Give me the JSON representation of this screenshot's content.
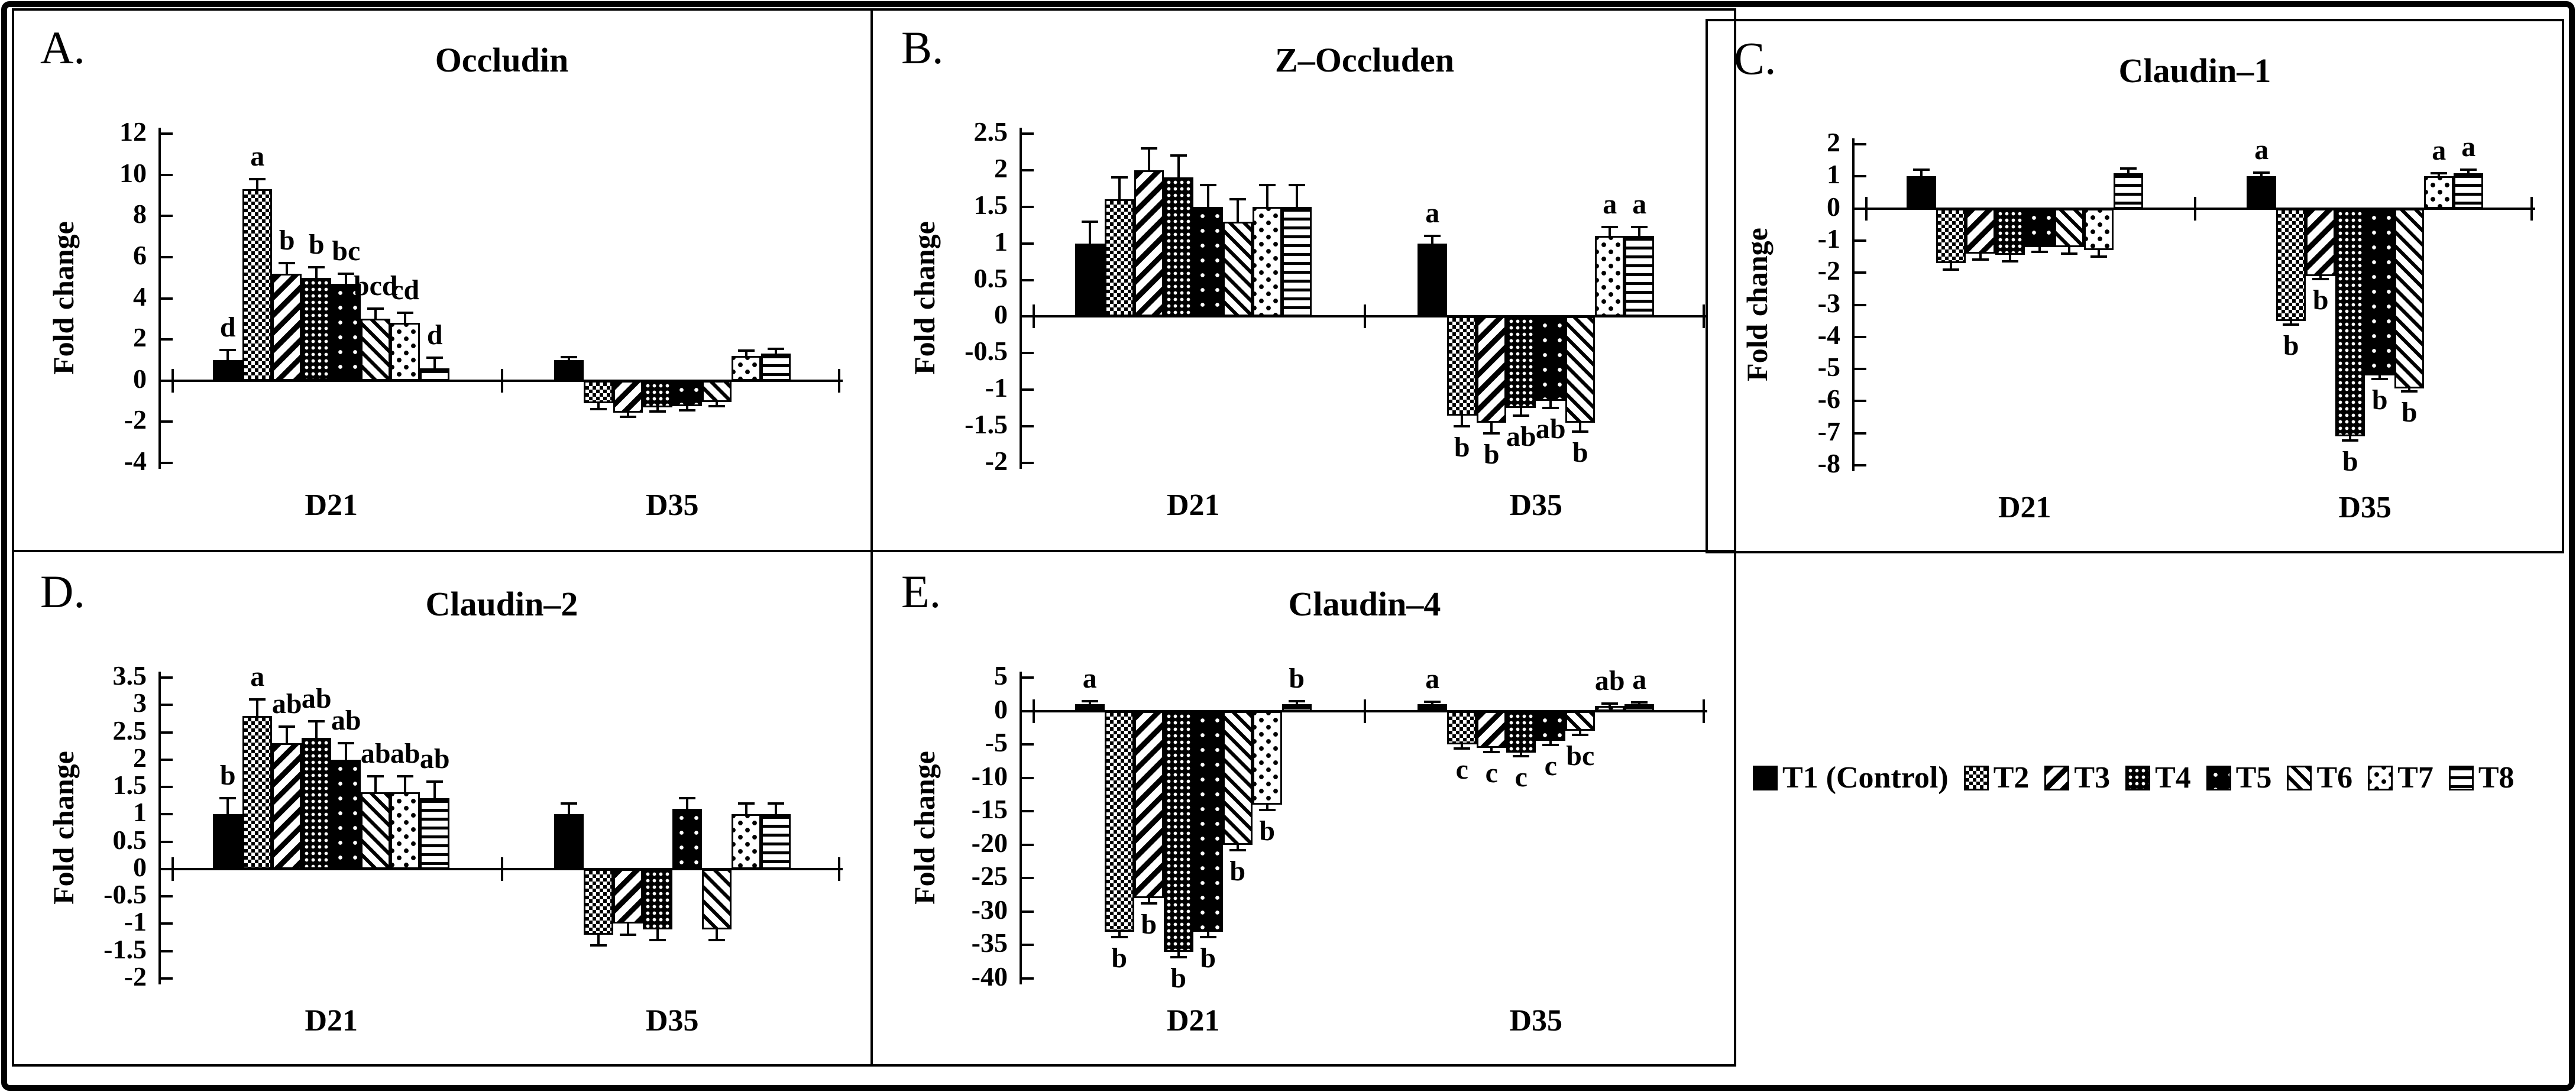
{
  "style": {
    "foreground": "#000000",
    "background": "#ffffff"
  },
  "legend": {
    "items": [
      {
        "treatment": "T1",
        "label": "T1 (Control)",
        "pattern": "solid-black"
      },
      {
        "treatment": "T2",
        "label": "T2",
        "pattern": "checkerboard"
      },
      {
        "treatment": "T3",
        "label": "T3",
        "pattern": "diagonal-stripes-up"
      },
      {
        "treatment": "T4",
        "label": "T4",
        "pattern": "dense-white-dots-on-black"
      },
      {
        "treatment": "T5",
        "label": "T5",
        "pattern": "sparse-white-dots-on-black"
      },
      {
        "treatment": "T6",
        "label": "T6",
        "pattern": "diagonal-stripes-down"
      },
      {
        "treatment": "T7",
        "label": "T7",
        "pattern": "scattered-black-squares"
      },
      {
        "treatment": "T8",
        "label": "T8",
        "pattern": "horizontal-stripes"
      }
    ]
  },
  "chart_data": [
    {
      "type": "bar",
      "panel": "A.",
      "title": "Occludin",
      "ylabel": "Fold change",
      "ylim": [
        -4,
        12
      ],
      "yticks": [
        12,
        10,
        8,
        6,
        4,
        2,
        0,
        -2,
        -4
      ],
      "grid": false,
      "legend_position": "bottom-right-of-figure",
      "groups": [
        {
          "label": "D21",
          "bars": [
            {
              "treatment": "T1",
              "value": 1.0,
              "error": 0.5,
              "sig": "d"
            },
            {
              "treatment": "T2",
              "value": 9.3,
              "error": 0.5,
              "sig": "a"
            },
            {
              "treatment": "T3",
              "value": 5.2,
              "error": 0.5,
              "sig": "b"
            },
            {
              "treatment": "T4",
              "value": 5.0,
              "error": 0.5,
              "sig": "b"
            },
            {
              "treatment": "T5",
              "value": 4.7,
              "error": 0.5,
              "sig": "bc"
            },
            {
              "treatment": "T6",
              "value": 3.0,
              "error": 0.5,
              "sig": "bcd"
            },
            {
              "treatment": "T7",
              "value": 2.8,
              "error": 0.5,
              "sig": "cd"
            },
            {
              "treatment": "T8",
              "value": 0.6,
              "error": 0.5,
              "sig": "d"
            }
          ]
        },
        {
          "label": "D35",
          "bars": [
            {
              "treatment": "T1",
              "value": 1.0,
              "error": 0.15
            },
            {
              "treatment": "T2",
              "value": -1.1,
              "error": 0.3
            },
            {
              "treatment": "T3",
              "value": -1.55,
              "error": 0.2
            },
            {
              "treatment": "T4",
              "value": -1.3,
              "error": 0.2
            },
            {
              "treatment": "T5",
              "value": -1.25,
              "error": 0.2
            },
            {
              "treatment": "T6",
              "value": -1.05,
              "error": 0.2
            },
            {
              "treatment": "T7",
              "value": 1.2,
              "error": 0.25
            },
            {
              "treatment": "T8",
              "value": 1.3,
              "error": 0.25
            }
          ]
        }
      ]
    },
    {
      "type": "bar",
      "panel": "B.",
      "title": "Z–Occluden",
      "ylabel": "Fold change",
      "ylim": [
        -2,
        2.5
      ],
      "yticks": [
        2.5,
        2,
        1.5,
        1,
        0.5,
        0,
        -0.5,
        -1,
        -1.5,
        -2
      ],
      "grid": false,
      "groups": [
        {
          "label": "D21",
          "bars": [
            {
              "treatment": "T1",
              "value": 1.0,
              "error": 0.3
            },
            {
              "treatment": "T2",
              "value": 1.6,
              "error": 0.3
            },
            {
              "treatment": "T3",
              "value": 2.0,
              "error": 0.3
            },
            {
              "treatment": "T4",
              "value": 1.9,
              "error": 0.3
            },
            {
              "treatment": "T5",
              "value": 1.5,
              "error": 0.3
            },
            {
              "treatment": "T6",
              "value": 1.3,
              "error": 0.3
            },
            {
              "treatment": "T7",
              "value": 1.5,
              "error": 0.3
            },
            {
              "treatment": "T8",
              "value": 1.5,
              "error": 0.3
            }
          ]
        },
        {
          "label": "D35",
          "bars": [
            {
              "treatment": "T1",
              "value": 1.0,
              "error": 0.1,
              "sig": "a"
            },
            {
              "treatment": "T2",
              "value": -1.35,
              "error": 0.15,
              "sig": "b"
            },
            {
              "treatment": "T3",
              "value": -1.45,
              "error": 0.15,
              "sig": "b"
            },
            {
              "treatment": "T4",
              "value": -1.25,
              "error": 0.1,
              "sig": "ab"
            },
            {
              "treatment": "T5",
              "value": -1.15,
              "error": 0.1,
              "sig": "ab"
            },
            {
              "treatment": "T6",
              "value": -1.45,
              "error": 0.12,
              "sig": "b"
            },
            {
              "treatment": "T7",
              "value": 1.1,
              "error": 0.12,
              "sig": "a"
            },
            {
              "treatment": "T8",
              "value": 1.1,
              "error": 0.12,
              "sig": "a"
            }
          ]
        }
      ]
    },
    {
      "type": "bar",
      "panel": "C.",
      "title": "Claudin–1",
      "ylabel": "Fold change",
      "ylim": [
        -8,
        2
      ],
      "yticks": [
        2,
        1,
        0,
        -1,
        -2,
        -3,
        -4,
        -5,
        -6,
        -7,
        -8
      ],
      "grid": false,
      "groups": [
        {
          "label": "D21",
          "bars": [
            {
              "treatment": "T1",
              "value": 1.0,
              "error": 0.2
            },
            {
              "treatment": "T2",
              "value": -1.7,
              "error": 0.2
            },
            {
              "treatment": "T3",
              "value": -1.4,
              "error": 0.2
            },
            {
              "treatment": "T4",
              "value": -1.45,
              "error": 0.2
            },
            {
              "treatment": "T5",
              "value": -1.2,
              "error": 0.15
            },
            {
              "treatment": "T6",
              "value": -1.2,
              "error": 0.2
            },
            {
              "treatment": "T7",
              "value": -1.3,
              "error": 0.2
            },
            {
              "treatment": "T8",
              "value": 1.1,
              "error": 0.15
            }
          ]
        },
        {
          "label": "D35",
          "bars": [
            {
              "treatment": "T1",
              "value": 1.0,
              "error": 0.12,
              "sig": "a"
            },
            {
              "treatment": "T2",
              "value": -3.5,
              "error": 0.12,
              "sig": "b"
            },
            {
              "treatment": "T3",
              "value": -2.1,
              "error": 0.1,
              "sig": "b"
            },
            {
              "treatment": "T4",
              "value": -7.1,
              "error": 0.12,
              "sig": "b"
            },
            {
              "treatment": "T5",
              "value": -5.2,
              "error": 0.12,
              "sig": "b"
            },
            {
              "treatment": "T6",
              "value": -5.6,
              "error": 0.1,
              "sig": "b"
            },
            {
              "treatment": "T7",
              "value": 1.0,
              "error": 0.1,
              "sig": "a"
            },
            {
              "treatment": "T8",
              "value": 1.1,
              "error": 0.1,
              "sig": "a"
            }
          ]
        }
      ]
    },
    {
      "type": "bar",
      "panel": "D.",
      "title": "Claudin–2",
      "ylabel": "Fold change",
      "ylim": [
        -2,
        3.5
      ],
      "yticks": [
        3.5,
        3,
        2.5,
        2,
        1.5,
        1,
        0.5,
        0,
        -0.5,
        -1,
        -1.5,
        -2
      ],
      "grid": false,
      "groups": [
        {
          "label": "D21",
          "bars": [
            {
              "treatment": "T1",
              "value": 1.0,
              "error": 0.3,
              "sig": "b"
            },
            {
              "treatment": "T2",
              "value": 2.8,
              "error": 0.3,
              "sig": "a"
            },
            {
              "treatment": "T3",
              "value": 2.3,
              "error": 0.3,
              "sig": "ab"
            },
            {
              "treatment": "T4",
              "value": 2.4,
              "error": 0.3,
              "sig": "ab"
            },
            {
              "treatment": "T5",
              "value": 2.0,
              "error": 0.3,
              "sig": "ab"
            },
            {
              "treatment": "T6",
              "value": 1.4,
              "error": 0.3,
              "sig": "ab"
            },
            {
              "treatment": "T7",
              "value": 1.4,
              "error": 0.3,
              "sig": "ab"
            },
            {
              "treatment": "T8",
              "value": 1.3,
              "error": 0.3,
              "sig": "ab"
            }
          ]
        },
        {
          "label": "D35",
          "bars": [
            {
              "treatment": "T1",
              "value": 1.0,
              "error": 0.2
            },
            {
              "treatment": "T2",
              "value": -1.2,
              "error": 0.2
            },
            {
              "treatment": "T3",
              "value": -1.0,
              "error": 0.2
            },
            {
              "treatment": "T4",
              "value": -1.1,
              "error": 0.2
            },
            {
              "treatment": "T5",
              "value": 1.1,
              "error": 0.2
            },
            {
              "treatment": "T6",
              "value": -1.1,
              "error": 0.2
            },
            {
              "treatment": "T7",
              "value": 1.0,
              "error": 0.2
            },
            {
              "treatment": "T8",
              "value": 1.0,
              "error": 0.2
            }
          ]
        }
      ]
    },
    {
      "type": "bar",
      "panel": "E.",
      "title": "Claudin–4",
      "ylabel": "Fold change",
      "ylim": [
        -40,
        5
      ],
      "yticks": [
        5,
        0,
        -5,
        -10,
        -15,
        -20,
        -25,
        -30,
        -35,
        -40
      ],
      "grid": false,
      "groups": [
        {
          "label": "D21",
          "bars": [
            {
              "treatment": "T1",
              "value": 1.0,
              "error": 0.5,
              "sig": "a"
            },
            {
              "treatment": "T2",
              "value": -33,
              "error": 0.8,
              "sig": "b"
            },
            {
              "treatment": "T3",
              "value": -28,
              "error": 0.8,
              "sig": "b"
            },
            {
              "treatment": "T4",
              "value": -36,
              "error": 0.8,
              "sig": "b"
            },
            {
              "treatment": "T5",
              "value": -33,
              "error": 0.8,
              "sig": "b"
            },
            {
              "treatment": "T6",
              "value": -20,
              "error": 0.8,
              "sig": "b"
            },
            {
              "treatment": "T7",
              "value": -14,
              "error": 0.8,
              "sig": "b"
            },
            {
              "treatment": "T8",
              "value": 1.0,
              "error": 0.5,
              "sig": "b"
            }
          ]
        },
        {
          "label": "D35",
          "bars": [
            {
              "treatment": "T1",
              "value": 1.0,
              "error": 0.4,
              "sig": "a"
            },
            {
              "treatment": "T2",
              "value": -5.0,
              "error": 0.6,
              "sig": "c"
            },
            {
              "treatment": "T3",
              "value": -5.5,
              "error": 0.6,
              "sig": "c"
            },
            {
              "treatment": "T4",
              "value": -6.2,
              "error": 0.6,
              "sig": "c"
            },
            {
              "treatment": "T5",
              "value": -4.5,
              "error": 0.6,
              "sig": "c"
            },
            {
              "treatment": "T6",
              "value": -3.0,
              "error": 0.6,
              "sig": "bc"
            },
            {
              "treatment": "T7",
              "value": 0.8,
              "error": 0.3,
              "sig": "ab"
            },
            {
              "treatment": "T8",
              "value": 1.0,
              "error": 0.3,
              "sig": "a"
            }
          ]
        }
      ]
    }
  ]
}
